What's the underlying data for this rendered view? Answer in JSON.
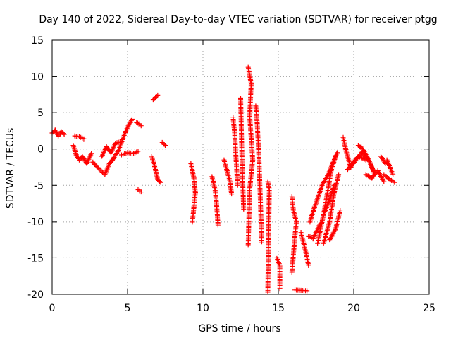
{
  "chart_data": {
    "type": "scatter",
    "title": "Day 140 of 2022, Sidereal Day-to-day VTEC variation (SDTVAR) for receiver ptgg",
    "xlabel": "GPS time / hours",
    "ylabel": "SDTVAR / TECUs",
    "xlim": [
      0,
      25
    ],
    "ylim": [
      -20,
      15
    ],
    "xticks": [
      0,
      5,
      10,
      15,
      20,
      25
    ],
    "yticks": [
      -20,
      -15,
      -10,
      -5,
      0,
      5,
      10,
      15
    ],
    "grid": true,
    "marker": "+",
    "color": "#ff0000",
    "series": [
      {
        "name": "SDTVAR",
        "segments": [
          [
            [
              0.0,
              2.2
            ],
            [
              0.2,
              2.6
            ],
            [
              0.4,
              1.8
            ],
            [
              0.6,
              2.4
            ],
            [
              0.8,
              2.0
            ]
          ],
          [
            [
              1.5,
              1.8
            ],
            [
              1.8,
              1.7
            ],
            [
              2.1,
              1.4
            ]
          ],
          [
            [
              1.4,
              0.5
            ],
            [
              1.6,
              -0.8
            ],
            [
              1.8,
              -1.5
            ],
            [
              2.0,
              -1.0
            ],
            [
              2.3,
              -2.0
            ],
            [
              2.6,
              -0.6
            ]
          ],
          [
            [
              2.7,
              -1.8
            ],
            [
              3.1,
              -2.7
            ],
            [
              3.5,
              -3.5
            ],
            [
              3.8,
              -2.0
            ],
            [
              4.1,
              -1.2
            ]
          ],
          [
            [
              3.3,
              -1.0
            ],
            [
              3.6,
              0.3
            ],
            [
              3.9,
              -0.5
            ],
            [
              4.2,
              0.8
            ],
            [
              4.5,
              1.0
            ]
          ],
          [
            [
              4.0,
              -1.5
            ],
            [
              4.4,
              -0.2
            ],
            [
              4.7,
              1.5
            ],
            [
              5.0,
              3.0
            ],
            [
              5.3,
              4.1
            ]
          ],
          [
            [
              4.6,
              -0.8
            ],
            [
              5.0,
              -0.5
            ],
            [
              5.4,
              -0.6
            ],
            [
              5.7,
              -0.3
            ]
          ],
          [
            [
              5.6,
              3.7
            ],
            [
              5.9,
              3.2
            ]
          ],
          [
            [
              5.7,
              -5.6
            ],
            [
              5.9,
              -5.9
            ]
          ],
          [
            [
              6.7,
              6.8
            ],
            [
              7.0,
              7.4
            ]
          ],
          [
            [
              6.6,
              -1.0
            ],
            [
              6.8,
              -2.4
            ],
            [
              7.0,
              -4.2
            ],
            [
              7.2,
              -4.6
            ]
          ],
          [
            [
              7.3,
              0.9
            ],
            [
              7.5,
              0.5
            ]
          ],
          [
            [
              9.2,
              -2.0
            ],
            [
              9.4,
              -4.0
            ],
            [
              9.5,
              -6.0
            ],
            [
              9.4,
              -8.0
            ],
            [
              9.3,
              -10.0
            ]
          ],
          [
            [
              10.6,
              -3.8
            ],
            [
              10.8,
              -5.5
            ],
            [
              10.9,
              -7.5
            ],
            [
              11.0,
              -10.5
            ]
          ],
          [
            [
              11.4,
              -1.5
            ],
            [
              11.6,
              -3.0
            ],
            [
              11.8,
              -4.5
            ],
            [
              11.9,
              -6.2
            ]
          ],
          [
            [
              12.0,
              4.3
            ],
            [
              12.1,
              2.3
            ],
            [
              12.2,
              -1.5
            ],
            [
              12.3,
              -5.0
            ]
          ],
          [
            [
              12.5,
              7.0
            ],
            [
              12.6,
              -2.3
            ],
            [
              12.7,
              -8.3
            ]
          ],
          [
            [
              13.0,
              11.3
            ],
            [
              13.2,
              9.0
            ],
            [
              13.1,
              4.5
            ],
            [
              13.3,
              -1.5
            ],
            [
              13.1,
              -5.5
            ],
            [
              13.0,
              -13.2
            ]
          ],
          [
            [
              13.5,
              6.0
            ],
            [
              13.6,
              3.5
            ],
            [
              13.7,
              -0.5
            ],
            [
              13.8,
              -6.5
            ],
            [
              13.9,
              -12.8
            ]
          ],
          [
            [
              14.3,
              -4.5
            ],
            [
              14.4,
              -5.5
            ],
            [
              14.3,
              -19.7
            ]
          ],
          [
            [
              14.9,
              -15.0
            ],
            [
              15.1,
              -16.0
            ],
            [
              15.1,
              -19.2
            ]
          ],
          [
            [
              15.9,
              -6.5
            ],
            [
              16.0,
              -8.5
            ],
            [
              16.2,
              -10.0
            ],
            [
              16.1,
              -12.0
            ],
            [
              15.9,
              -17.0
            ]
          ],
          [
            [
              16.1,
              -19.4
            ],
            [
              16.9,
              -19.5
            ]
          ],
          [
            [
              16.5,
              -11.5
            ],
            [
              16.8,
              -14.0
            ],
            [
              17.0,
              -16.0
            ]
          ],
          [
            [
              17.0,
              -12.0
            ],
            [
              17.3,
              -12.3
            ],
            [
              17.8,
              -10.2
            ]
          ],
          [
            [
              17.1,
              -10.0
            ],
            [
              17.4,
              -8.0
            ],
            [
              17.9,
              -5.0
            ],
            [
              18.3,
              -3.5
            ],
            [
              18.6,
              -2.0
            ],
            [
              18.9,
              -0.5
            ]
          ],
          [
            [
              18.0,
              -13.0
            ],
            [
              18.4,
              -10.0
            ],
            [
              18.7,
              -6.0
            ],
            [
              19.0,
              -3.5
            ]
          ],
          [
            [
              17.6,
              -13.0
            ],
            [
              18.0,
              -9.0
            ],
            [
              18.3,
              -5.5
            ],
            [
              18.5,
              -3.0
            ],
            [
              18.8,
              -1.0
            ]
          ],
          [
            [
              18.0,
              -9.0
            ],
            [
              18.4,
              -7.0
            ],
            [
              18.7,
              -5.0
            ]
          ],
          [
            [
              18.4,
              -12.5
            ],
            [
              18.8,
              -11.0
            ],
            [
              19.1,
              -8.5
            ]
          ],
          [
            [
              19.3,
              1.6
            ],
            [
              19.5,
              -0.3
            ],
            [
              19.8,
              -2.5
            ],
            [
              20.3,
              -1.0
            ],
            [
              20.8,
              -1.5
            ]
          ],
          [
            [
              19.6,
              -2.8
            ],
            [
              20.1,
              -1.5
            ],
            [
              20.5,
              -0.5
            ],
            [
              21.0,
              -1.5
            ],
            [
              21.3,
              -3.0
            ]
          ],
          [
            [
              20.3,
              0.5
            ],
            [
              20.6,
              0.0
            ],
            [
              21.0,
              -1.5
            ],
            [
              21.4,
              -3.5
            ]
          ],
          [
            [
              20.8,
              -3.5
            ],
            [
              21.2,
              -4.0
            ],
            [
              21.6,
              -3.0
            ],
            [
              22.0,
              -4.5
            ]
          ],
          [
            [
              21.8,
              -1.0
            ],
            [
              22.1,
              -2.0
            ]
          ],
          [
            [
              22.2,
              -1.5
            ],
            [
              22.6,
              -3.5
            ]
          ],
          [
            [
              22.0,
              -3.5
            ],
            [
              22.4,
              -4.2
            ],
            [
              22.7,
              -4.6
            ]
          ]
        ]
      }
    ]
  }
}
